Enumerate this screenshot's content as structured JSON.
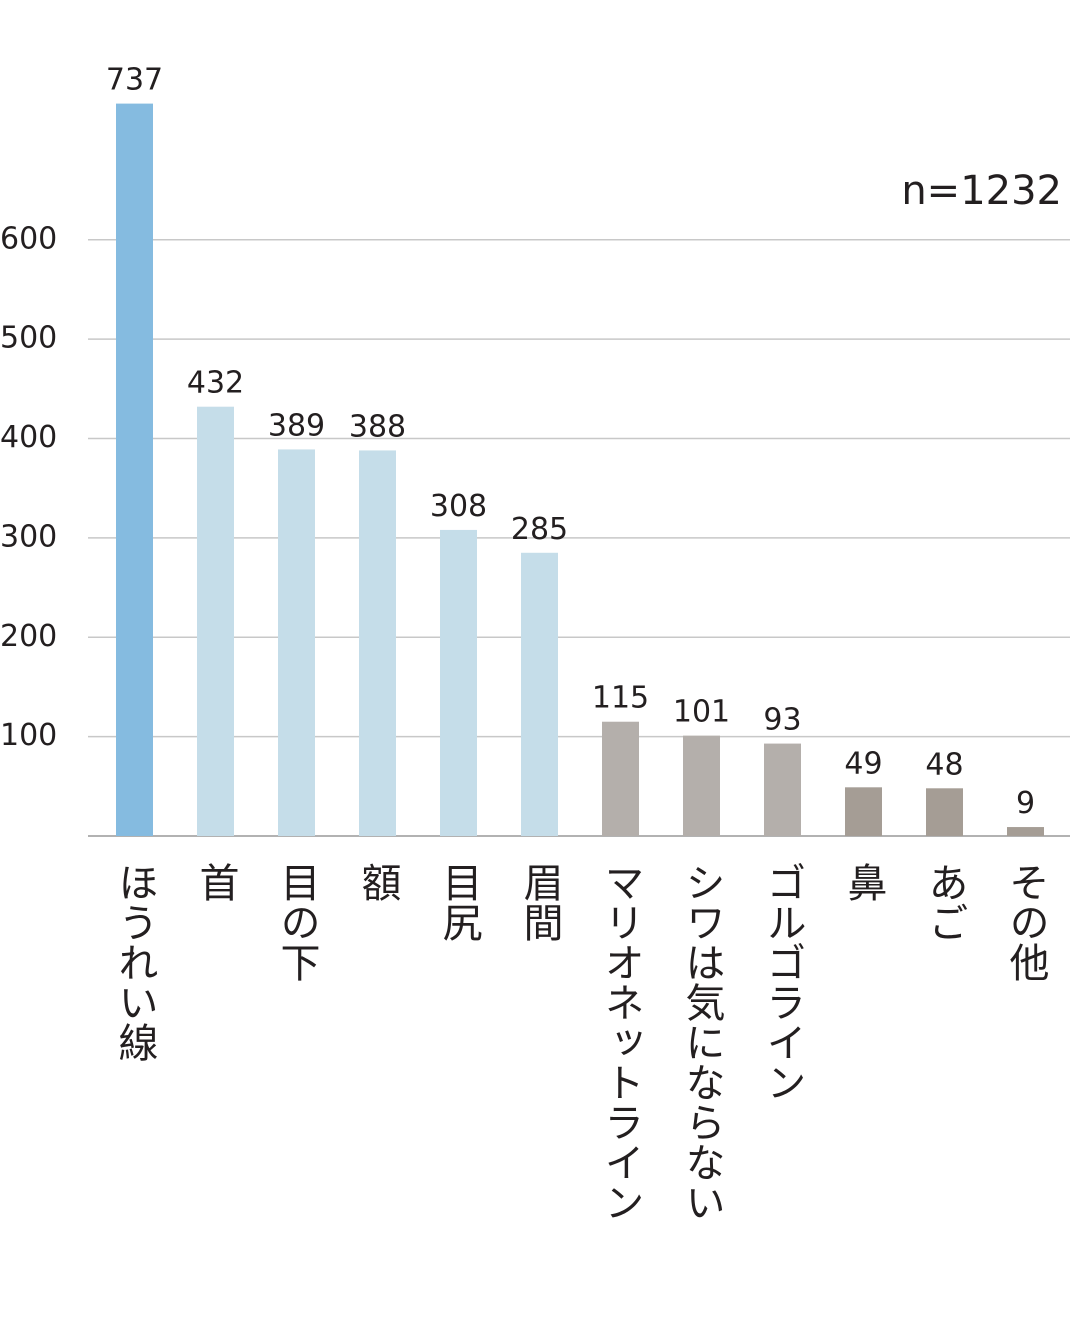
{
  "chart_data": {
    "type": "bar",
    "annotation": "n=1232",
    "categories": [
      "ほうれい線",
      "首",
      "目の下",
      "額",
      "目尻",
      "眉間",
      "マリオネットライン",
      "シワは気にならない",
      "ゴルゴライン",
      "鼻",
      "あご",
      "その他"
    ],
    "values": [
      737,
      432,
      389,
      388,
      308,
      285,
      115,
      101,
      93,
      49,
      48,
      9
    ],
    "colors": [
      "#85bbe0",
      "#c5dde9",
      "#c5dde9",
      "#c5dde9",
      "#c5dde9",
      "#c5dde9",
      "#b4afab",
      "#b4afab",
      "#b4afab",
      "#a59d95",
      "#a59d95",
      "#a59d95"
    ],
    "ylim": [
      0,
      800
    ],
    "yticks": [
      100,
      200,
      300,
      400,
      500,
      600
    ],
    "grid": true
  }
}
